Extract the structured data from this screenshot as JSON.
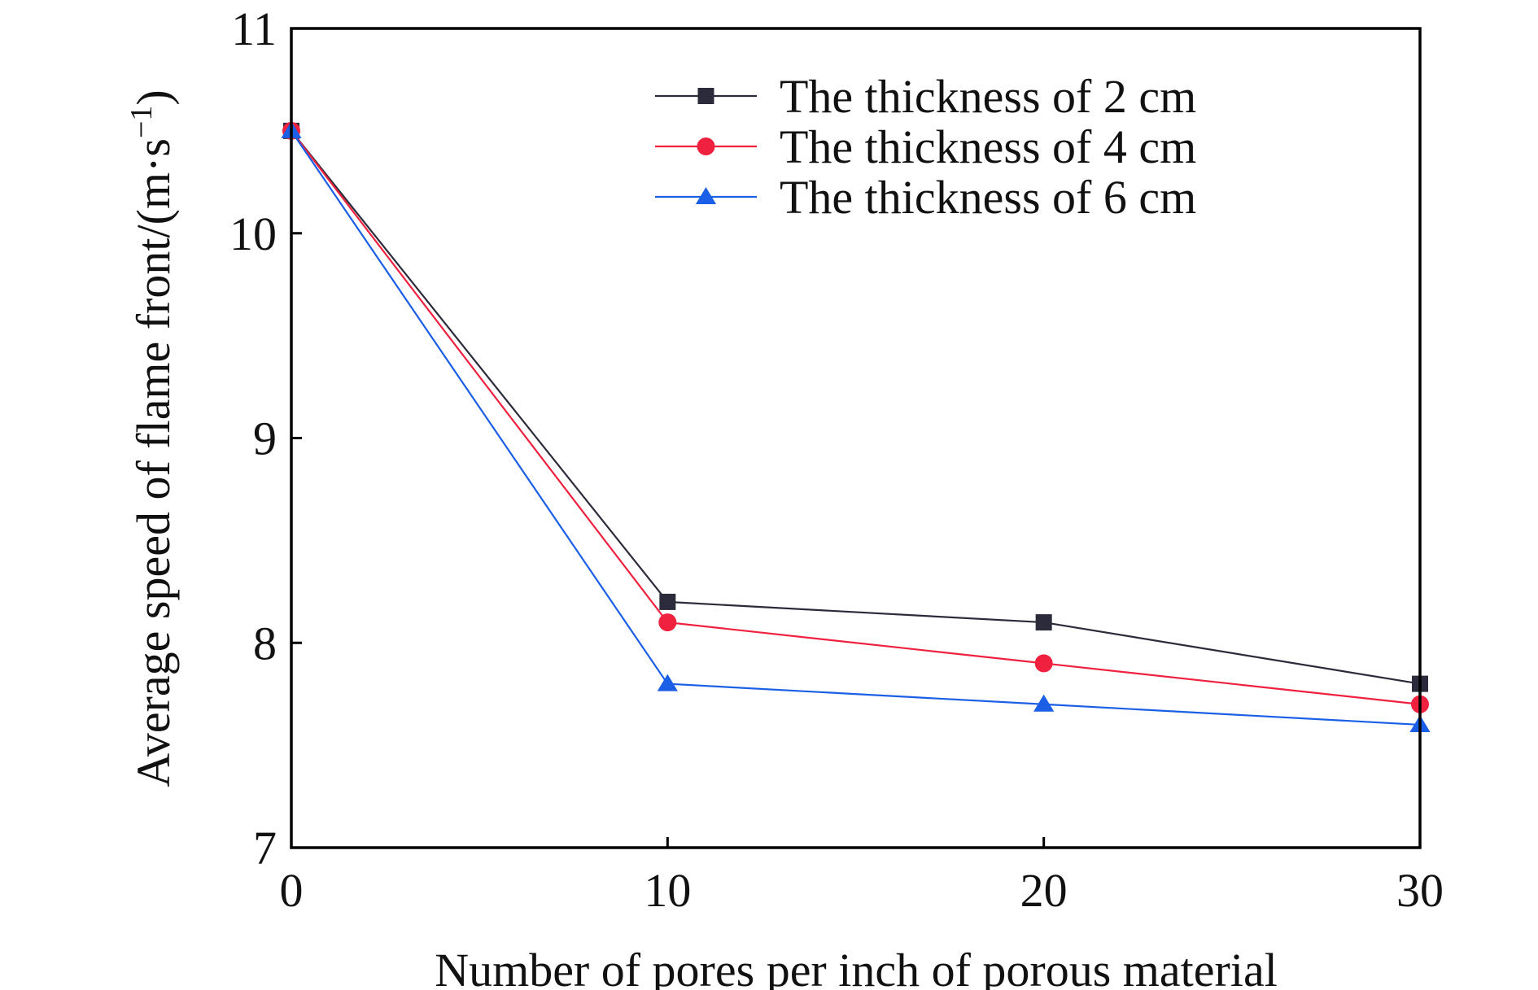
{
  "chart_data": {
    "type": "line",
    "xlabel": "Number of pores per inch of porous material",
    "ylabel": "Average speed of flame front/(m·s",
    "ylabel_superscript": "−1",
    "ylabel_close": ")",
    "xlim": [
      0,
      30
    ],
    "ylim": [
      7,
      11
    ],
    "xticks": [
      0,
      10,
      20,
      30
    ],
    "yticks": [
      7,
      8,
      9,
      10,
      11
    ],
    "grid": false,
    "legend_position": "top-right",
    "x": [
      0,
      10,
      20,
      30
    ],
    "series": [
      {
        "name": "The thickness of 2 cm",
        "color": "#2b2b3b",
        "marker": "square",
        "values": [
          10.5,
          8.2,
          8.1,
          7.8
        ]
      },
      {
        "name": "The thickness of 4 cm",
        "color": "#f0203f",
        "marker": "circle",
        "values": [
          10.5,
          8.1,
          7.9,
          7.7
        ]
      },
      {
        "name": "The thickness of 6 cm",
        "color": "#1a5fe6",
        "marker": "triangle",
        "values": [
          10.5,
          7.8,
          7.7,
          7.6
        ]
      }
    ]
  }
}
